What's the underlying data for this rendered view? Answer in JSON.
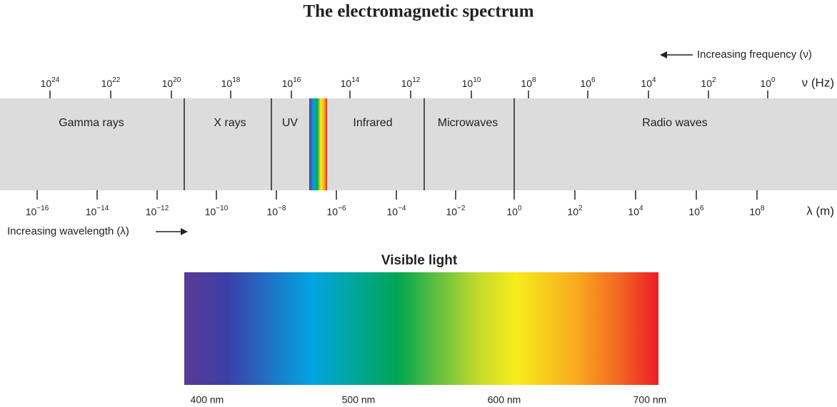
{
  "title": "The electromagnetic spectrum",
  "frequency": {
    "direction_label": "Increasing frequency (ν)",
    "unit_label": "ν (Hz)",
    "ticks": [
      {
        "base": "10",
        "exp": "24"
      },
      {
        "base": "10",
        "exp": "22"
      },
      {
        "base": "10",
        "exp": "20"
      },
      {
        "base": "10",
        "exp": "18"
      },
      {
        "base": "10",
        "exp": "16"
      },
      {
        "base": "10",
        "exp": "14"
      },
      {
        "base": "10",
        "exp": "12"
      },
      {
        "base": "10",
        "exp": "10"
      },
      {
        "base": "10",
        "exp": "8"
      },
      {
        "base": "10",
        "exp": "6"
      },
      {
        "base": "10",
        "exp": "4"
      },
      {
        "base": "10",
        "exp": "2"
      },
      {
        "base": "10",
        "exp": "0"
      }
    ]
  },
  "bands": [
    "Gamma rays",
    "X rays",
    "UV",
    "Infrared",
    "Microwaves",
    "Radio waves"
  ],
  "wavelength": {
    "direction_label": "Increasing wavelength (λ)",
    "unit_label": "λ (m)",
    "ticks": [
      {
        "base": "10",
        "exp": "−16"
      },
      {
        "base": "10",
        "exp": "−14"
      },
      {
        "base": "10",
        "exp": "−12"
      },
      {
        "base": "10",
        "exp": "−10"
      },
      {
        "base": "10",
        "exp": "−8"
      },
      {
        "base": "10",
        "exp": "−6"
      },
      {
        "base": "10",
        "exp": "−4"
      },
      {
        "base": "10",
        "exp": "−2"
      },
      {
        "base": "10",
        "exp": "0"
      },
      {
        "base": "10",
        "exp": "2"
      },
      {
        "base": "10",
        "exp": "4"
      },
      {
        "base": "10",
        "exp": "6"
      },
      {
        "base": "10",
        "exp": "8"
      }
    ]
  },
  "visible": {
    "title": "Visible light",
    "labels": [
      "400 nm",
      "500 nm",
      "600 nm",
      "700 nm"
    ]
  }
}
